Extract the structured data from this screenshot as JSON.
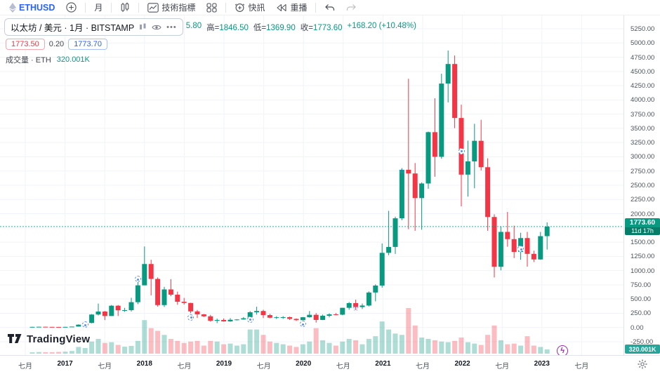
{
  "toolbar": {
    "symbol": "ETHUSD",
    "interval_label": "月",
    "indicators_label": "技術指標",
    "alerts_label": "快訊",
    "replay_label": "重播"
  },
  "legend": {
    "symbol_title": "以太坊 / 美元 · 1月 · BITSTAMP",
    "more_dots": "•••",
    "open_partial": "5.80",
    "ohlc": [
      {
        "label": "高=",
        "value": "1846.50"
      },
      {
        "label": "低=",
        "value": "1369.90"
      },
      {
        "label": "收=",
        "value": "1773.60"
      }
    ],
    "change": "+168.20 (+10.48%)",
    "bid": "1773.50",
    "spread": "0.20",
    "ask": "1773.70",
    "volume_label": "成交量 · ETH",
    "volume_value": "320.001K"
  },
  "price_axis": {
    "ticks": [
      "5250.00",
      "5000.00",
      "4750.00",
      "4500.00",
      "4250.00",
      "4000.00",
      "3750.00",
      "3500.00",
      "3250.00",
      "3000.00",
      "2750.00",
      "2500.00",
      "2250.00",
      "2000.00",
      "1750.00",
      "1500.00",
      "1250.00",
      "1000.00",
      "750.00",
      "500.00",
      "250.00",
      "0.00",
      "-250.00"
    ],
    "last_price_label": "1773.60",
    "countdown": "11d 17h",
    "volume_label": "320.001K"
  },
  "time_axis": {
    "labels": [
      "七月",
      "2017",
      "七月",
      "2018",
      "七月",
      "2019",
      "七月",
      "2020",
      "七月",
      "2021",
      "七月",
      "2022",
      "七月",
      "2023",
      "七月"
    ]
  },
  "logo": {
    "text": "TradingView"
  },
  "colors": {
    "up": "#089981",
    "down": "#f23645",
    "accent": "#2962ff",
    "price_line": "#089981"
  },
  "chart_data": {
    "type": "candlestick",
    "symbol": "ETHUSD",
    "exchange": "BITSTAMP",
    "interval": "1月",
    "ylabel": "USD",
    "ylim": [
      -250,
      5250
    ],
    "grid": true,
    "price_line": 1773.6,
    "volume_unit": "K ETH",
    "candles_format": [
      "month",
      "open",
      "high",
      "low",
      "close",
      "volume_K"
    ],
    "candles": [
      [
        "2016-08",
        11.2,
        11.6,
        9.7,
        11.2,
        100
      ],
      [
        "2016-09",
        11.2,
        13.4,
        11.0,
        13.1,
        120
      ],
      [
        "2016-10",
        13.1,
        13.3,
        10.5,
        10.9,
        110
      ],
      [
        "2016-11",
        10.9,
        11.4,
        8.6,
        9.7,
        110
      ],
      [
        "2016-12",
        9.7,
        9.9,
        6.8,
        8.0,
        130
      ],
      [
        "2017-01",
        8.0,
        11.3,
        7.8,
        10.7,
        150
      ],
      [
        "2017-02",
        10.7,
        16.4,
        10.3,
        16.0,
        200
      ],
      [
        "2017-03",
        16.0,
        55,
        15.9,
        49.8,
        500
      ],
      [
        "2017-04",
        49.8,
        96,
        43,
        79.9,
        420
      ],
      [
        "2017-05",
        79.9,
        235,
        74,
        228,
        900
      ],
      [
        "2017-06",
        228,
        420,
        211,
        280,
        1100
      ],
      [
        "2017-07",
        280,
        290,
        130,
        202,
        800
      ],
      [
        "2017-08",
        202,
        395,
        200,
        383,
        850
      ],
      [
        "2017-09",
        383,
        395,
        202,
        302,
        650
      ],
      [
        "2017-10",
        302,
        345,
        275,
        305,
        520
      ],
      [
        "2017-11",
        305,
        522,
        280,
        445,
        580
      ],
      [
        "2017-12",
        445,
        880,
        410,
        741,
        950
      ],
      [
        "2018-01",
        741,
        1424,
        740,
        1116,
        2500
      ],
      [
        "2018-02",
        1116,
        1190,
        565,
        854,
        1900
      ],
      [
        "2018-03",
        854,
        880,
        368,
        394,
        1700
      ],
      [
        "2018-04",
        394,
        715,
        361,
        669,
        1400
      ],
      [
        "2018-05",
        669,
        850,
        550,
        577,
        1100
      ],
      [
        "2018-06",
        577,
        630,
        400,
        452,
        950
      ],
      [
        "2018-07",
        452,
        520,
        403,
        431,
        800
      ],
      [
        "2018-08",
        431,
        435,
        249,
        283,
        900
      ],
      [
        "2018-09",
        283,
        308,
        167,
        231,
        950
      ],
      [
        "2018-10",
        231,
        238,
        184,
        197,
        600
      ],
      [
        "2018-11",
        197,
        222,
        102,
        118,
        950
      ],
      [
        "2018-12",
        118,
        157,
        77,
        132,
        900
      ],
      [
        "2019-01",
        132,
        160,
        103,
        107,
        700
      ],
      [
        "2019-02",
        107,
        165,
        102,
        136,
        750
      ],
      [
        "2019-03",
        136,
        147,
        124,
        141,
        600
      ],
      [
        "2019-04",
        141,
        183,
        138,
        162,
        700
      ],
      [
        "2019-05",
        162,
        288,
        150,
        268,
        1800
      ],
      [
        "2019-06",
        268,
        365,
        226,
        290,
        1800
      ],
      [
        "2019-07",
        290,
        313,
        166,
        218,
        1400
      ],
      [
        "2019-08",
        218,
        239,
        163,
        172,
        900
      ],
      [
        "2019-09",
        172,
        198,
        150,
        180,
        800
      ],
      [
        "2019-10",
        180,
        199,
        151,
        182,
        700
      ],
      [
        "2019-11",
        182,
        192,
        132,
        151,
        600
      ],
      [
        "2019-12",
        151,
        160,
        116,
        129,
        500
      ],
      [
        "2020-01",
        129,
        184,
        126,
        180,
        700
      ],
      [
        "2020-02",
        180,
        289,
        174,
        223,
        900
      ],
      [
        "2020-03",
        223,
        253,
        86,
        133,
        1900
      ],
      [
        "2020-04",
        133,
        227,
        130,
        206,
        1000
      ],
      [
        "2020-05",
        206,
        249,
        178,
        231,
        800
      ],
      [
        "2020-06",
        231,
        254,
        215,
        225,
        600
      ],
      [
        "2020-07",
        225,
        347,
        216,
        346,
        900
      ],
      [
        "2020-08",
        346,
        447,
        313,
        429,
        1100
      ],
      [
        "2020-09",
        429,
        489,
        308,
        359,
        1000
      ],
      [
        "2020-10",
        359,
        421,
        325,
        386,
        700
      ],
      [
        "2020-11",
        386,
        635,
        370,
        615,
        1100
      ],
      [
        "2020-12",
        615,
        758,
        460,
        737,
        1300
      ],
      [
        "2021-01",
        737,
        1477,
        700,
        1312,
        2400
      ],
      [
        "2021-02",
        1312,
        2050,
        1270,
        1416,
        1800
      ],
      [
        "2021-03",
        1416,
        1947,
        1293,
        1919,
        1500
      ],
      [
        "2021-04",
        1919,
        2798,
        1886,
        2772,
        1400
      ],
      [
        "2021-05",
        2772,
        4372,
        1728,
        2707,
        3400
      ],
      [
        "2021-06",
        2707,
        2891,
        1700,
        2274,
        2100
      ],
      [
        "2021-07",
        2274,
        2550,
        1718,
        2531,
        1200
      ],
      [
        "2021-08",
        2531,
        3443,
        2438,
        3433,
        1100
      ],
      [
        "2021-09",
        3433,
        4028,
        2650,
        3000,
        1000
      ],
      [
        "2021-10",
        3000,
        4460,
        2966,
        4287,
        900
      ],
      [
        "2021-11",
        4287,
        4868,
        3956,
        4631,
        850
      ],
      [
        "2021-12",
        4631,
        4780,
        3503,
        3682,
        950
      ],
      [
        "2022-01",
        3682,
        3916,
        2128,
        2687,
        1200
      ],
      [
        "2022-02",
        2687,
        3284,
        2300,
        2919,
        850
      ],
      [
        "2022-03",
        2919,
        3580,
        2447,
        3281,
        750
      ],
      [
        "2022-04",
        3281,
        3650,
        2760,
        2817,
        650
      ],
      [
        "2022-05",
        2817,
        2974,
        1700,
        1942,
        1400
      ],
      [
        "2022-06",
        1942,
        1990,
        880,
        1067,
        2100
      ],
      [
        "2022-07",
        1067,
        1775,
        1005,
        1680,
        1000
      ],
      [
        "2022-08",
        1680,
        2030,
        1420,
        1553,
        700
      ],
      [
        "2022-09",
        1553,
        1790,
        1220,
        1328,
        750
      ],
      [
        "2022-10",
        1328,
        1665,
        1190,
        1572,
        600
      ],
      [
        "2022-11",
        1572,
        1680,
        1070,
        1294,
        1300
      ],
      [
        "2022-12",
        1294,
        1350,
        1150,
        1196,
        600
      ],
      [
        "2023-01",
        1196,
        1680,
        1190,
        1605.4,
        500
      ],
      [
        "2023-02",
        1605.8,
        1846.5,
        1369.9,
        1773.6,
        320.001
      ]
    ],
    "markers": [
      {
        "m": 8,
        "price": 50,
        "type": "circle"
      },
      {
        "m": 16,
        "price": 850,
        "type": "circle"
      },
      {
        "m": 24,
        "price": 180,
        "type": "circle"
      },
      {
        "m": 33,
        "price": 140,
        "type": "circle"
      },
      {
        "m": 41,
        "price": 60,
        "type": "circle"
      },
      {
        "m": 49,
        "price": 330,
        "type": "star"
      },
      {
        "m": 56,
        "price": 2750,
        "type": "star"
      },
      {
        "m": 65,
        "price": 3100,
        "type": "circle"
      },
      {
        "m": 74,
        "price": 1380,
        "type": "circle"
      }
    ]
  }
}
